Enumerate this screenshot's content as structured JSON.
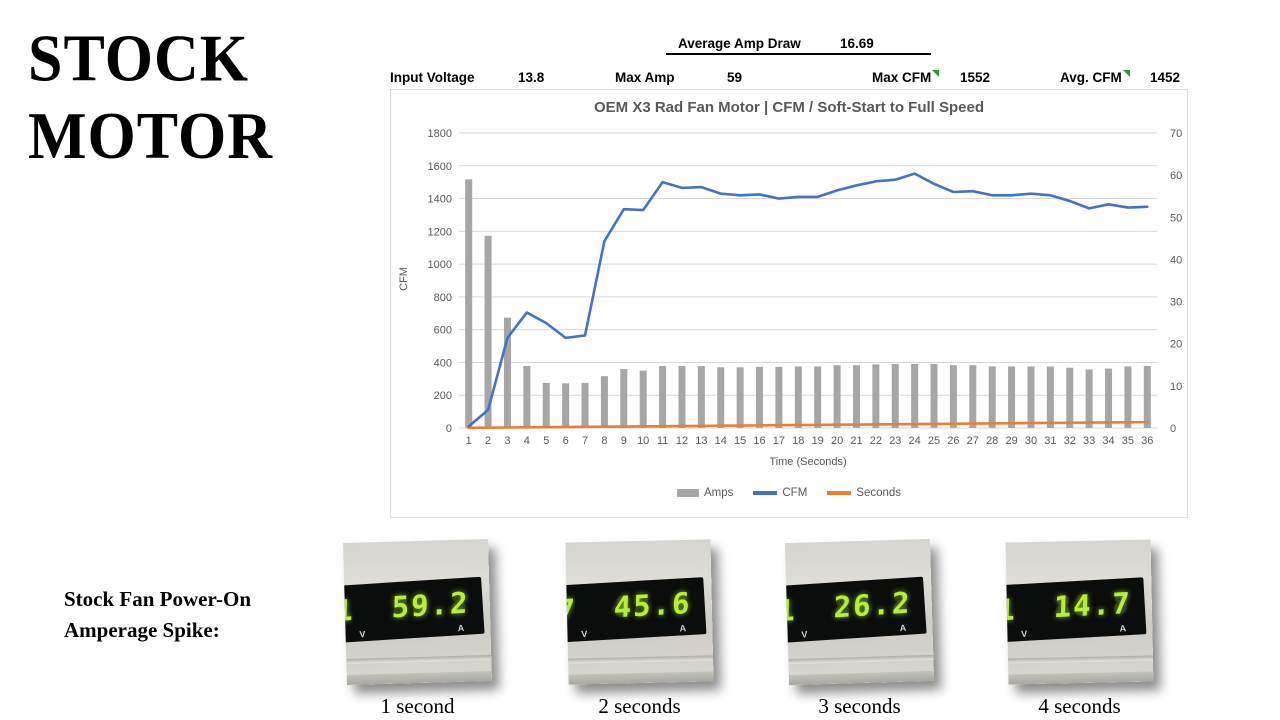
{
  "slide": {
    "title_line1": "STOCK",
    "title_line2": "MOTOR",
    "spike_label_line1": "Stock Fan Power-On",
    "spike_label_line2": "Amperage Spike:"
  },
  "stats": {
    "avg_amp_label": "Average Amp Draw",
    "avg_amp_value": "16.69",
    "input_voltage_label": "Input Voltage",
    "input_voltage_value": "13.8",
    "max_amp_label": "Max Amp",
    "max_amp_value": "59",
    "max_cfm_label": "Max CFM",
    "max_cfm_value": "1552",
    "avg_cfm_label": "Avg. CFM",
    "avg_cfm_value": "1452"
  },
  "chart_data": {
    "type": "combo bar+line",
    "title": "OEM X3 Rad Fan Motor  | CFM / Soft-Start to Full Speed",
    "xlabel": "Time (Seconds)",
    "ylabel_left": "CFM",
    "ylim_left": [
      0,
      1800
    ],
    "yticks_left": [
      0,
      200,
      400,
      600,
      800,
      1000,
      1200,
      1400,
      1600,
      1800
    ],
    "ylim_right": [
      0,
      70
    ],
    "yticks_right": [
      0,
      10,
      20,
      30,
      40,
      50,
      60,
      70
    ],
    "grid": true,
    "legend_position": "bottom",
    "x": [
      1,
      2,
      3,
      4,
      5,
      6,
      7,
      8,
      9,
      10,
      11,
      12,
      13,
      14,
      15,
      16,
      17,
      18,
      19,
      20,
      21,
      22,
      23,
      24,
      25,
      26,
      27,
      28,
      29,
      30,
      31,
      32,
      33,
      34,
      35,
      36
    ],
    "series": [
      {
        "name": "Amps",
        "type": "bar",
        "axis": "right",
        "color": "#a6a6a6",
        "values": [
          59,
          45.6,
          26.2,
          14.7,
          10.7,
          10.6,
          10.7,
          12.3,
          14.0,
          13.6,
          14.7,
          14.7,
          14.7,
          14.4,
          14.4,
          14.5,
          14.5,
          14.6,
          14.6,
          14.9,
          14.9,
          15.1,
          15.2,
          15.2,
          15.2,
          14.9,
          14.9,
          14.6,
          14.6,
          14.6,
          14.6,
          14.3,
          13.9,
          14.1,
          14.6,
          14.7
        ]
      },
      {
        "name": "CFM",
        "type": "line",
        "axis": "left",
        "color": "#4472c4",
        "values": [
          10,
          110,
          550,
          705,
          640,
          550,
          565,
          1140,
          1335,
          1330,
          1500,
          1465,
          1470,
          1430,
          1420,
          1425,
          1400,
          1410,
          1410,
          1450,
          1480,
          1505,
          1515,
          1552,
          1490,
          1440,
          1445,
          1420,
          1420,
          1430,
          1420,
          1385,
          1340,
          1365,
          1345,
          1350
        ]
      },
      {
        "name": "Seconds",
        "type": "line",
        "axis": "left",
        "color": "#ed7d31",
        "values": [
          1,
          2,
          3,
          4,
          5,
          6,
          7,
          8,
          9,
          10,
          11,
          12,
          13,
          14,
          15,
          16,
          17,
          18,
          19,
          20,
          21,
          22,
          23,
          24,
          25,
          26,
          27,
          28,
          29,
          30,
          31,
          32,
          33,
          34,
          35,
          36
        ]
      }
    ]
  },
  "meters": [
    {
      "reading": "59.2",
      "ghost": "88.8",
      "left_partial": "1",
      "unit_left": "V",
      "unit_right": "A",
      "caption": "1 second"
    },
    {
      "reading": "45.6",
      "ghost": "88.8",
      "left_partial": "7",
      "unit_left": "V",
      "unit_right": "A",
      "caption": "2 seconds"
    },
    {
      "reading": "26.2",
      "ghost": "88.8",
      "left_partial": "1",
      "unit_left": "V",
      "unit_right": "A",
      "caption": "3 seconds"
    },
    {
      "reading": "14.7",
      "ghost": "88.8",
      "left_partial": "1",
      "unit_left": "V",
      "unit_right": "A",
      "caption": "4 seconds"
    }
  ]
}
